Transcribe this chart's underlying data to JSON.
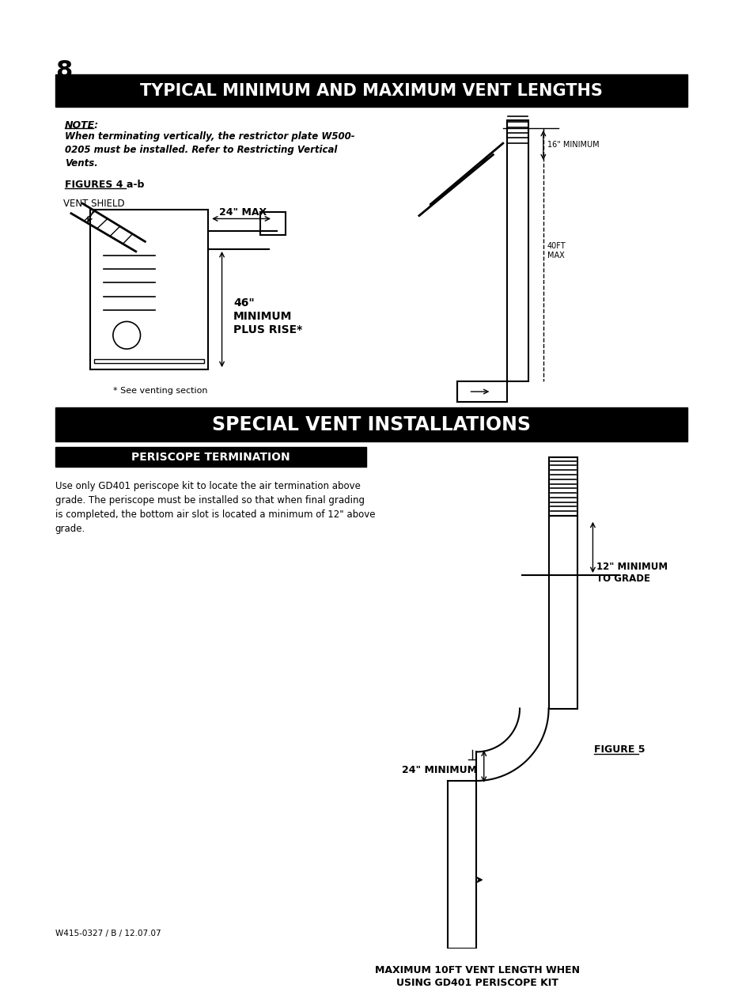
{
  "page_num": "8",
  "title1": "TYPICAL MINIMUM AND MAXIMUM VENT LENGTHS",
  "title2": "SPECIAL VENT INSTALLATIONS",
  "subtitle2": "PERISCOPE TERMINATION",
  "note_label": "NOTE:",
  "note_text": "When terminating vertically, the restrictor plate W500-\n0205 must be installed. Refer to Restricting Vertical\nVents.",
  "figures_label": "FIGURES 4 a-b",
  "fig5_label": "FIGURE 5",
  "see_venting": "* See venting section",
  "label_24max": "24\" MAX",
  "label_vent_shield": "VENT SHIELD",
  "label_46min": "46\"\nMINIMUM\nPLUS RISE*",
  "label_16min": "16\" MINIMUM",
  "label_40ft": "40FT\nMAX",
  "label_12min": "12\" MINIMUM\nTO GRADE",
  "label_24min": "24\" MINIMUM",
  "label_max10ft": "MAXIMUM 10FT VENT LENGTH WHEN\nUSING GD401 PERISCOPE KIT",
  "periscope_text": "Use only GD401 periscope kit to locate the air termination above\ngrade. The periscope must be installed so that when final grading\nis completed, the bottom air slot is located a minimum of 12\" above\ngrade.",
  "footer": "W415-0327 / B / 12.07.07",
  "bg_color": "#ffffff",
  "title_bg": "#000000",
  "title_fg": "#ffffff",
  "subtitle_bg": "#000000",
  "subtitle_fg": "#ffffff",
  "line_color": "#000000",
  "text_color": "#000000"
}
